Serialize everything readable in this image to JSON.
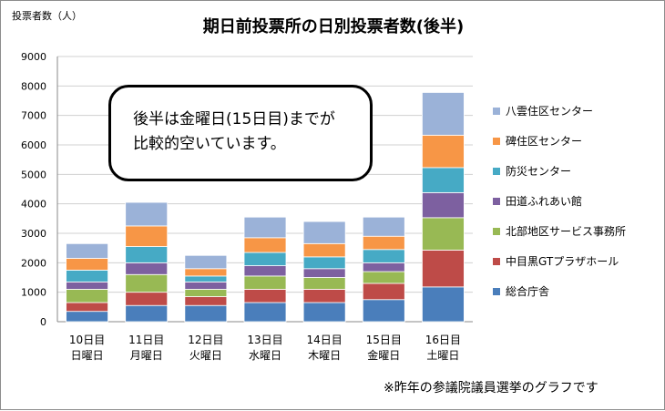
{
  "chart_data": {
    "type": "bar",
    "stacked": true,
    "title": "期日前投票所の日別投票者数(後半)",
    "ylabel": "投票者数（人）",
    "ylim": [
      0,
      9000
    ],
    "yticks": [
      0,
      1000,
      2000,
      3000,
      4000,
      5000,
      6000,
      7000,
      8000,
      9000
    ],
    "grid": true,
    "legend_position": "right",
    "categories": [
      [
        "10日目",
        "日曜日"
      ],
      [
        "11日目",
        "月曜日"
      ],
      [
        "12日目",
        "火曜日"
      ],
      [
        "13日目",
        "水曜日"
      ],
      [
        "14日目",
        "木曜日"
      ],
      [
        "15日目",
        "金曜日"
      ],
      [
        "16日目",
        "土曜日"
      ]
    ],
    "series": [
      {
        "name": "総合庁舎",
        "color": "#4a7ebb",
        "values": [
          350,
          550,
          550,
          650,
          650,
          750,
          1180
        ]
      },
      {
        "name": "中目黒GTプラザホール",
        "color": "#be4b48",
        "values": [
          300,
          450,
          300,
          450,
          450,
          550,
          1250
        ]
      },
      {
        "name": "北部地区サービス事務所",
        "color": "#98b954",
        "values": [
          450,
          600,
          250,
          450,
          400,
          400,
          1100
        ]
      },
      {
        "name": "田道ふれあい館",
        "color": "#7d60a0",
        "values": [
          250,
          400,
          250,
          350,
          300,
          300,
          850
        ]
      },
      {
        "name": "防災センター",
        "color": "#46aac5",
        "values": [
          400,
          550,
          200,
          450,
          400,
          450,
          850
        ]
      },
      {
        "name": "碑住区センター",
        "color": "#f79646",
        "values": [
          400,
          700,
          250,
          500,
          450,
          450,
          1100
        ]
      },
      {
        "name": "八雲住区センター",
        "color": "#9bb2d8",
        "values": [
          500,
          800,
          450,
          700,
          750,
          650,
          1450
        ]
      }
    ]
  },
  "callout": {
    "line1": "後半は金曜日(15日目)までが",
    "line2": "比較的空いています。"
  },
  "footnote": "※昨年の参議院議員選挙のグラフです"
}
